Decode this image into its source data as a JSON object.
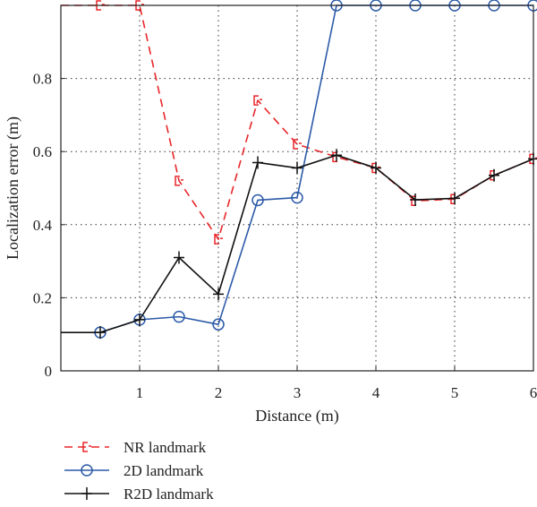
{
  "chart_data": {
    "type": "line",
    "xlabel": "Distance (m)",
    "ylabel": "Localization error (m)",
    "xlim": [
      0,
      6
    ],
    "ylim": [
      0,
      1
    ],
    "x_ticks": [
      1,
      2,
      3,
      4,
      5,
      6
    ],
    "y_ticks": [
      0,
      0.2,
      0.4,
      0.6,
      0.8
    ],
    "x_tick_labels": [
      "1",
      "2",
      "3",
      "4",
      "5",
      "6"
    ],
    "y_tick_labels": [
      "0",
      "0.2",
      "0.4",
      "0.6",
      "0.8"
    ],
    "grid": true,
    "legend_position": "below",
    "series": [
      {
        "name": "NR landmark",
        "color": "#e8262a",
        "line_style": "dashed",
        "marker": "square-bracket",
        "x": [
          0,
          0.5,
          1,
          1.5,
          2,
          2.5,
          3,
          3.5,
          4,
          4.5,
          5,
          5.5,
          6
        ],
        "y": [
          1.0,
          1.0,
          1.0,
          0.52,
          0.36,
          0.74,
          0.62,
          0.585,
          0.555,
          0.465,
          0.47,
          0.535,
          0.58
        ],
        "marker_x": [
          0.5,
          1,
          1.5,
          2,
          2.5,
          3,
          3.5,
          4,
          4.5,
          5,
          5.5,
          6
        ]
      },
      {
        "name": "2D landmark",
        "color": "#2c5aa8",
        "line_style": "solid",
        "marker": "circle",
        "x": [
          0.5,
          1,
          1.5,
          2,
          2.5,
          3,
          3.5,
          4,
          4.5,
          5,
          5.5,
          6
        ],
        "y": [
          0.105,
          0.14,
          0.148,
          0.127,
          0.467,
          0.474,
          1.0,
          1.0,
          1.0,
          1.0,
          1.0,
          1.0
        ],
        "marker_x": [
          0.5,
          1,
          1.5,
          2,
          2.5,
          3,
          3.5,
          4,
          4.5,
          5,
          5.5,
          6
        ]
      },
      {
        "name": "R2D landmark",
        "color": "#111111",
        "line_style": "solid",
        "marker": "plus",
        "x": [
          0,
          0.5,
          1,
          1.5,
          2,
          2.5,
          3,
          3.5,
          4,
          4.5,
          5,
          5.5,
          6
        ],
        "y": [
          0.105,
          0.105,
          0.14,
          0.31,
          0.21,
          0.57,
          0.555,
          0.59,
          0.555,
          0.468,
          0.472,
          0.535,
          0.58
        ],
        "marker_x": [
          0.5,
          1,
          1.5,
          2,
          2.5,
          3,
          3.5,
          4,
          4.5,
          5,
          5.5,
          6
        ]
      }
    ]
  }
}
